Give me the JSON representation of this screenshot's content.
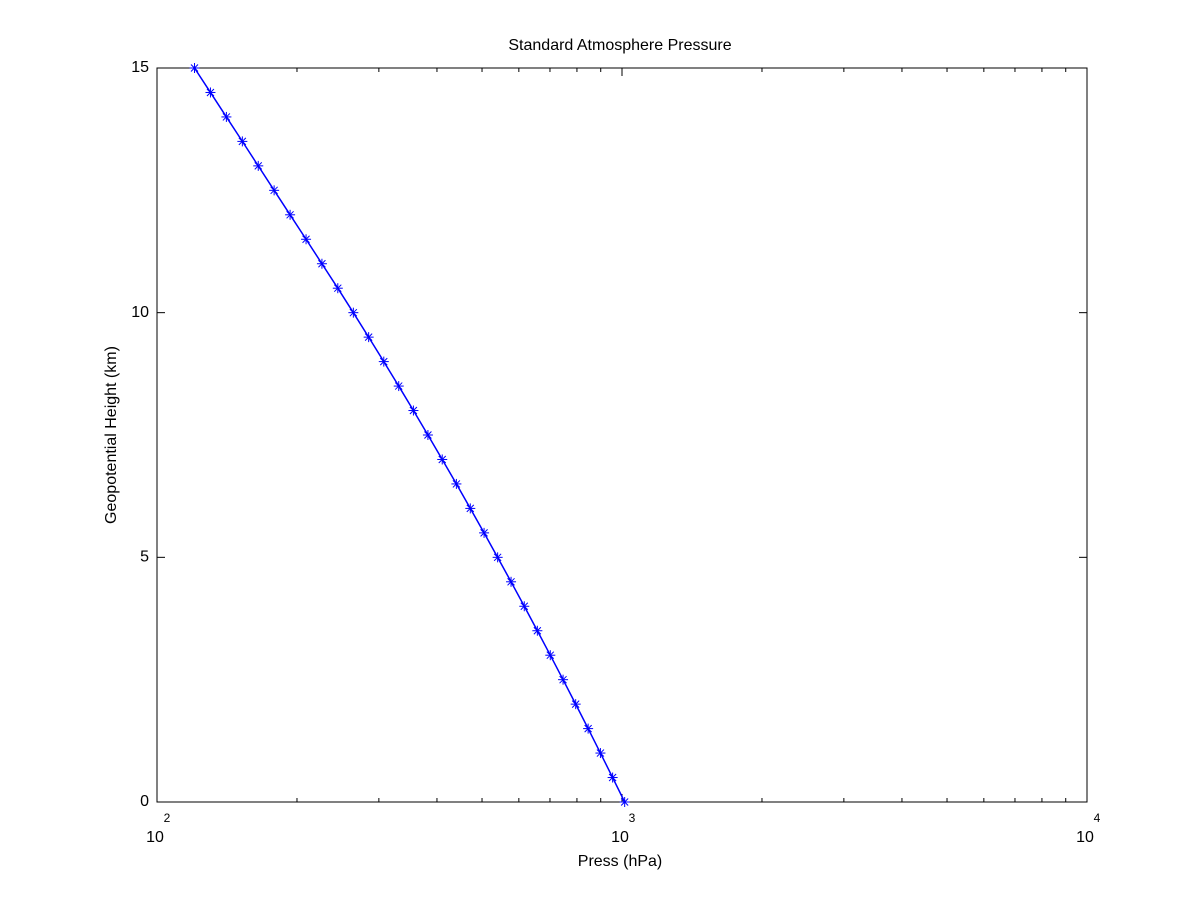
{
  "chart_data": {
    "type": "line",
    "title": "Standard Atmosphere Pressure",
    "x_label": "Press (hPa)",
    "y_label": "Geopotential Height (km)",
    "x_scale": "log",
    "xlim": [
      100,
      10000
    ],
    "ylim": [
      0,
      15
    ],
    "xticks": [
      {
        "value": 100,
        "label": "10",
        "exponent": "2"
      },
      {
        "value": 1000,
        "label": "10",
        "exponent": "3"
      },
      {
        "value": 10000,
        "label": "10",
        "exponent": "4"
      }
    ],
    "xminorticks": [
      200,
      300,
      400,
      500,
      600,
      700,
      800,
      900,
      2000,
      3000,
      4000,
      5000,
      6000,
      7000,
      8000,
      9000
    ],
    "yticks": [
      0,
      5,
      10,
      15
    ],
    "grid": false,
    "series": [
      {
        "color": "#0000ff",
        "marker": "*",
        "x": [
          1013.25,
          954.6,
          898.7,
          845.6,
          795.0,
          746.9,
          701.1,
          657.6,
          616.4,
          577.3,
          540.2,
          505.1,
          471.8,
          440.4,
          410.6,
          382.5,
          356.0,
          331.0,
          307.4,
          285.2,
          264.4,
          244.8,
          226.3,
          209.2,
          193.3,
          178.6,
          165.1,
          152.6,
          141.0,
          130.3,
          120.4
        ],
        "values": [
          0,
          0.5,
          1,
          1.5,
          2,
          2.5,
          3,
          3.5,
          4,
          4.5,
          5,
          5.5,
          6,
          6.5,
          7,
          7.5,
          8,
          8.5,
          9,
          9.5,
          10,
          10.5,
          11,
          11.5,
          12,
          12.5,
          13,
          13.5,
          14,
          14.5,
          15
        ]
      }
    ]
  }
}
